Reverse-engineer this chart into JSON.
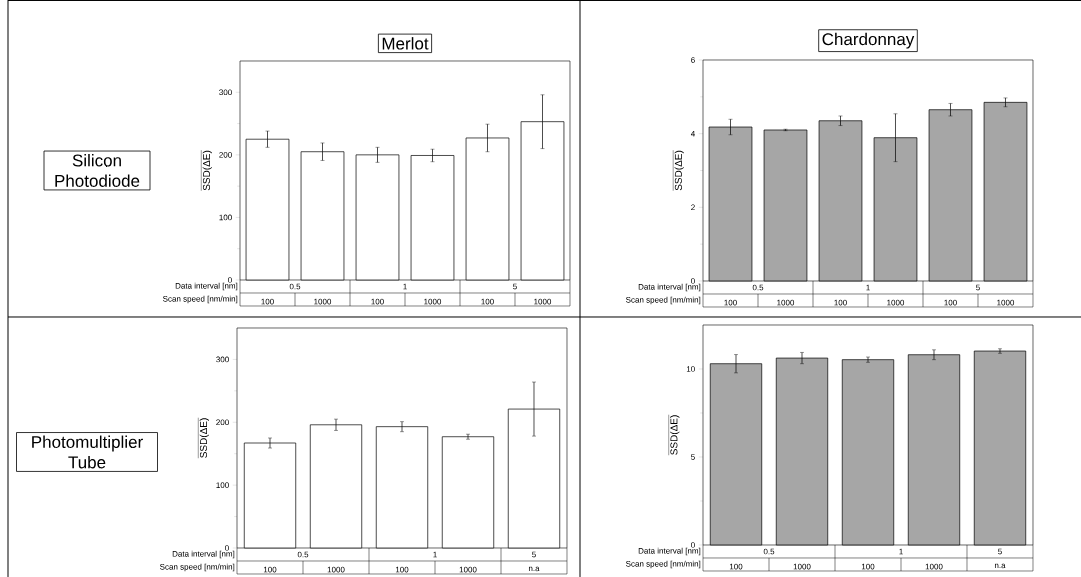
{
  "chart_data": [
    {
      "type": "bar",
      "title": "Merlot",
      "subtitle": "Silicon Photodiode",
      "ylabel": "SSD(ΔE)",
      "categories": [
        "100",
        "1000",
        "100",
        "1000",
        "100",
        "1000"
      ],
      "values": [
        225,
        205,
        200,
        199,
        227,
        253
      ],
      "errors": [
        13,
        14,
        12,
        10,
        22,
        43
      ],
      "color": "#ffffff",
      "ylim": [
        0,
        350
      ],
      "yticks": [
        0,
        100,
        200,
        300
      ],
      "annotations": [
        "Data interval [nm]",
        "Scan speed [nm/min]",
        "0.5",
        "1",
        "5"
      ]
    },
    {
      "type": "bar",
      "title": "Chardonnay",
      "ylabel": "SSD(ΔE)",
      "categories": [
        "100",
        "1000",
        "100",
        "1000",
        "100",
        "1000"
      ],
      "values": [
        4.18,
        4.1,
        4.35,
        3.89,
        4.65,
        4.85
      ],
      "errors": [
        0.21,
        0.02,
        0.13,
        0.65,
        0.17,
        0.12
      ],
      "color": "#a6a6a6",
      "ylim": [
        0,
        6
      ],
      "yticks": [
        0,
        2,
        4,
        6
      ],
      "annotations": [
        "Data interval [nm]",
        "Scan speed [nm/min]",
        "0.5",
        "1",
        "5"
      ]
    },
    {
      "type": "bar",
      "subtitle": "Photomultiplier Tube",
      "ylabel": "SSD(ΔE)",
      "categories": [
        "100",
        "1000",
        "100",
        "1000",
        "n.a"
      ],
      "values": [
        167,
        196,
        193,
        177,
        221
      ],
      "errors": [
        8,
        9,
        8,
        4,
        43
      ],
      "color": "#ffffff",
      "ylim": [
        0,
        350
      ],
      "yticks": [
        0,
        100,
        200,
        300
      ],
      "annotations": [
        "Data interval [nm]",
        "Scan speed [nm/min]",
        "0.5",
        "1",
        "5"
      ]
    },
    {
      "type": "bar",
      "ylabel": "SSD(ΔE)",
      "categories": [
        "100",
        "1000",
        "100",
        "1000",
        "n.a"
      ],
      "values": [
        10.3,
        10.62,
        10.53,
        10.81,
        11.02
      ],
      "errors": [
        0.52,
        0.32,
        0.15,
        0.28,
        0.13
      ],
      "color": "#a6a6a6",
      "ylim": [
        0,
        12.5
      ],
      "yticks": [
        0,
        5,
        10
      ],
      "annotations": [
        "Data interval [nm]",
        "Scan speed [nm/min]",
        "0.5",
        "1",
        "5"
      ]
    }
  ]
}
